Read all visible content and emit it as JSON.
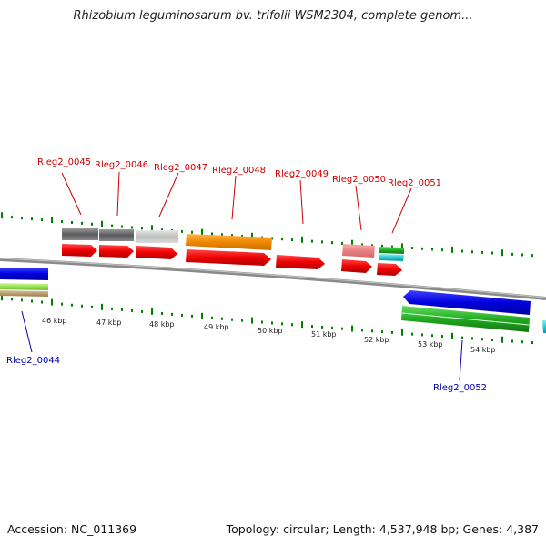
{
  "title": "Rhizobium leguminosarum bv. trifolii WSM2304, complete genom...",
  "footer": {
    "accession": "Accession: NC_011369",
    "summary": "Topology: circular; Length: 4,537,948 bp; Genes: 4,387"
  },
  "colors": {
    "label_forward": "#cc0000",
    "label_reverse": "#0000aa",
    "tick": "#008000",
    "backbone": "#808080"
  },
  "scale_labels": [
    "46 kbp",
    "47 kbp",
    "48 kbp",
    "49 kbp",
    "50 kbp",
    "51 kbp",
    "52 kbp",
    "53 kbp",
    "54 kbp"
  ],
  "gene_labels": [
    {
      "id": "Rleg2_0045",
      "strand": "forward"
    },
    {
      "id": "Rleg2_0046",
      "strand": "forward"
    },
    {
      "id": "Rleg2_0047",
      "strand": "forward"
    },
    {
      "id": "Rleg2_0048",
      "strand": "forward"
    },
    {
      "id": "Rleg2_0049",
      "strand": "forward"
    },
    {
      "id": "Rleg2_0050",
      "strand": "forward"
    },
    {
      "id": "Rleg2_0051",
      "strand": "forward"
    },
    {
      "id": "Rleg2_0044",
      "strand": "reverse"
    },
    {
      "id": "Rleg2_0052",
      "strand": "reverse"
    }
  ]
}
